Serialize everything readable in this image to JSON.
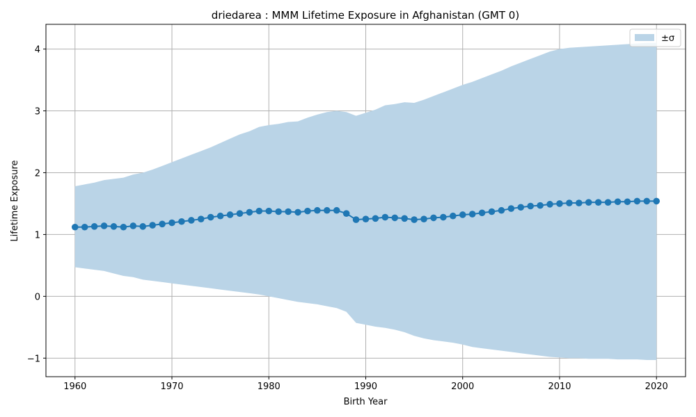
{
  "chart_data": {
    "type": "line",
    "title": "driedarea : MMM Lifetime Exposure in Afghanistan (GMT 0)",
    "xlabel": "Birth Year",
    "ylabel": "Lifetime Exposure",
    "xlim": [
      1957,
      2023
    ],
    "ylim": [
      -1.3,
      4.4
    ],
    "xticks": [
      1960,
      1970,
      1980,
      1990,
      2000,
      2010,
      2020
    ],
    "xtick_labels": [
      "1960",
      "1970",
      "1980",
      "1990",
      "2000",
      "2010",
      "2020"
    ],
    "yticks": [
      -1,
      0,
      1,
      2,
      3,
      4
    ],
    "ytick_labels": [
      "−1",
      "0",
      "1",
      "2",
      "3",
      "4"
    ],
    "grid": true,
    "legend": {
      "placement": "top-right",
      "entries": [
        {
          "label": "±σ"
        }
      ]
    },
    "colors": {
      "line": "#1f77b4",
      "band": "#bad4e7",
      "grid": "#b0b0b0"
    },
    "x": [
      1960,
      1961,
      1962,
      1963,
      1964,
      1965,
      1966,
      1967,
      1968,
      1969,
      1970,
      1971,
      1972,
      1973,
      1974,
      1975,
      1976,
      1977,
      1978,
      1979,
      1980,
      1981,
      1982,
      1983,
      1984,
      1985,
      1986,
      1987,
      1988,
      1989,
      1990,
      1991,
      1992,
      1993,
      1994,
      1995,
      1996,
      1997,
      1998,
      1999,
      2000,
      2001,
      2002,
      2003,
      2004,
      2005,
      2006,
      2007,
      2008,
      2009,
      2010,
      2011,
      2012,
      2013,
      2014,
      2015,
      2016,
      2017,
      2018,
      2019,
      2020
    ],
    "series": [
      {
        "type": "line",
        "values": [
          1.12,
          1.12,
          1.13,
          1.14,
          1.13,
          1.12,
          1.14,
          1.13,
          1.15,
          1.17,
          1.19,
          1.21,
          1.23,
          1.25,
          1.28,
          1.3,
          1.32,
          1.34,
          1.36,
          1.38,
          1.38,
          1.37,
          1.37,
          1.36,
          1.38,
          1.39,
          1.39,
          1.39,
          1.34,
          1.24,
          1.25,
          1.26,
          1.28,
          1.27,
          1.26,
          1.24,
          1.25,
          1.27,
          1.28,
          1.3,
          1.32,
          1.33,
          1.35,
          1.37,
          1.39,
          1.42,
          1.44,
          1.46,
          1.47,
          1.49,
          1.5,
          1.51,
          1.51,
          1.52,
          1.52,
          1.52,
          1.53,
          1.53,
          1.54,
          1.54,
          1.54
        ]
      },
      {
        "type": "band",
        "name": "±σ",
        "upper": [
          1.78,
          1.81,
          1.84,
          1.88,
          1.9,
          1.92,
          1.97,
          2.0,
          2.05,
          2.11,
          2.17,
          2.23,
          2.29,
          2.35,
          2.41,
          2.48,
          2.55,
          2.62,
          2.67,
          2.74,
          2.77,
          2.79,
          2.82,
          2.83,
          2.89,
          2.94,
          2.98,
          3.0,
          2.98,
          2.92,
          2.97,
          3.02,
          3.09,
          3.11,
          3.14,
          3.13,
          3.18,
          3.24,
          3.3,
          3.36,
          3.42,
          3.47,
          3.53,
          3.59,
          3.65,
          3.72,
          3.78,
          3.84,
          3.9,
          3.96,
          4.0,
          4.02,
          4.03,
          4.04,
          4.05,
          4.06,
          4.07,
          4.08,
          4.09,
          4.1,
          4.1
        ],
        "lower": [
          0.47,
          0.45,
          0.43,
          0.41,
          0.37,
          0.33,
          0.31,
          0.27,
          0.25,
          0.23,
          0.21,
          0.19,
          0.17,
          0.15,
          0.13,
          0.11,
          0.09,
          0.07,
          0.05,
          0.03,
          0.0,
          -0.03,
          -0.06,
          -0.09,
          -0.11,
          -0.13,
          -0.16,
          -0.19,
          -0.25,
          -0.43,
          -0.46,
          -0.49,
          -0.51,
          -0.54,
          -0.58,
          -0.64,
          -0.68,
          -0.71,
          -0.73,
          -0.75,
          -0.78,
          -0.82,
          -0.84,
          -0.86,
          -0.88,
          -0.9,
          -0.92,
          -0.94,
          -0.96,
          -0.98,
          -0.99,
          -1.0,
          -1.0,
          -1.01,
          -1.01,
          -1.01,
          -1.02,
          -1.02,
          -1.02,
          -1.03,
          -1.03
        ]
      }
    ]
  }
}
